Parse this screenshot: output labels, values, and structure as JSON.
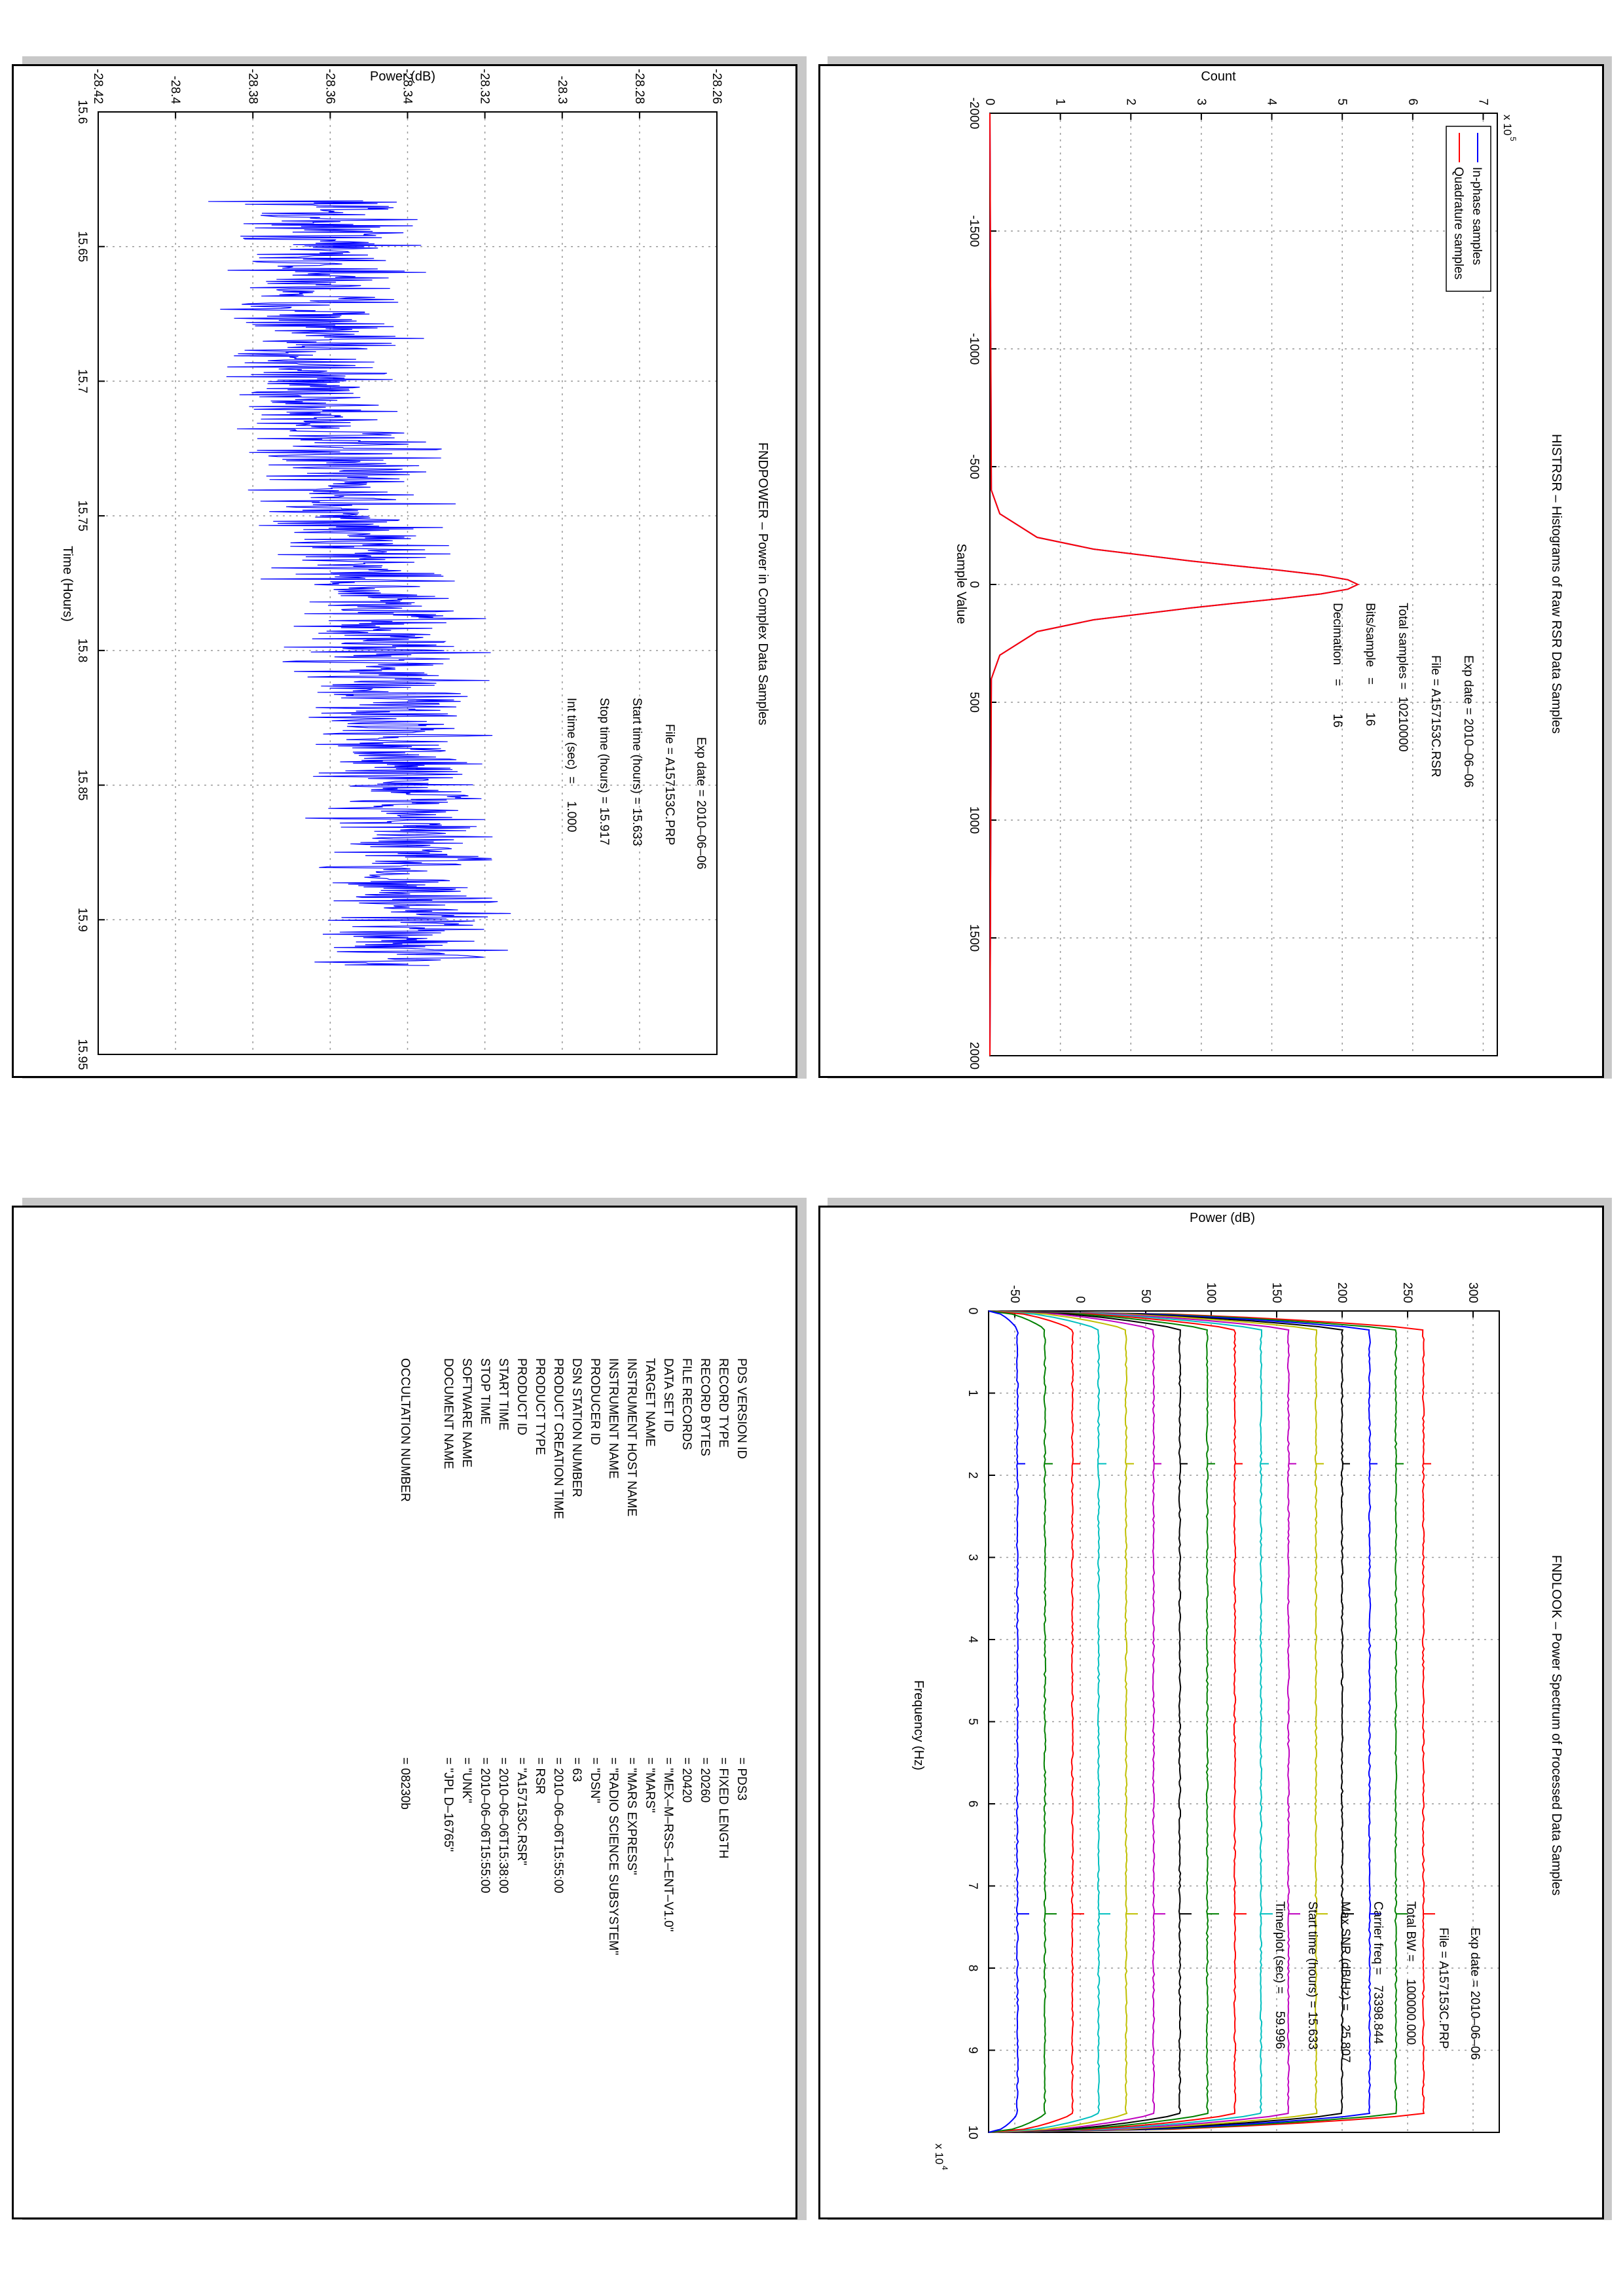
{
  "histogram": {
    "title": "HISTRSR – Histograms of Raw RSR Data Samples",
    "xlabel": "Sample Value",
    "ylabel": "Count",
    "exponent": "x 10",
    "exponent_power": "5",
    "x_ticks": [
      "-2000",
      "-1500",
      "-1000",
      "-500",
      "0",
      "500",
      "1000",
      "1500",
      "2000"
    ],
    "y_ticks": [
      "0",
      "1",
      "2",
      "3",
      "4",
      "5",
      "6",
      "7"
    ],
    "legend": [
      "In-phase samples",
      "Quadrature samples"
    ],
    "info": [
      "Exp date = 2010–06–06",
      "File = A157153C.RSR",
      "Total samples =  10210000",
      "Bits/sample   =        16",
      "Decimation    =        16"
    ]
  },
  "power": {
    "title": "FNDPOWER – Power in Complex Data Samples",
    "xlabel": "Time (Hours)",
    "ylabel": "Power (dB)",
    "x_ticks": [
      "15.6",
      "15.65",
      "15.7",
      "15.75",
      "15.8",
      "15.85",
      "15.9",
      "15.95"
    ],
    "y_ticks": [
      "-28.42",
      "-28.4",
      "-28.38",
      "-28.36",
      "-28.34",
      "-28.32",
      "-28.3",
      "-28.28",
      "-28.26"
    ],
    "info": [
      "Exp date = 2010–06–06",
      "File = A157153C.PRP",
      "Start time (hours) = 15.633",
      "Stop time (hours) = 15.917",
      "Int time (sec)  =     1.000"
    ]
  },
  "spectrum": {
    "title": "FNDLOOK – Power Spectrum of Processed Data Samples",
    "xlabel": "Frequency (Hz)",
    "ylabel": "Power (dB)",
    "exponent": "x 10",
    "exponent_power": "4",
    "x_ticks": [
      "0",
      "1",
      "2",
      "3",
      "4",
      "5",
      "6",
      "7",
      "8",
      "9",
      "10"
    ],
    "y_ticks": [
      "-50",
      "0",
      "50",
      "100",
      "150",
      "200",
      "250",
      "300"
    ],
    "info": [
      "Exp date = 2010–06–06",
      "File = A157153C.PRP",
      "Total BW =     100000.000",
      "Carrier freq =   73398.844",
      "Max SNR (dB/Hz) =    25.807",
      "Start time (hours) = 15.633",
      "Time/plot (sec) =     59.996"
    ]
  },
  "label_table": {
    "rows": [
      {
        "key": "PDS VERSION ID",
        "val": "= PDS3"
      },
      {
        "key": "RECORD TYPE",
        "val": "= FIXED LENGTH"
      },
      {
        "key": "RECORD BYTES",
        "val": "= 20260"
      },
      {
        "key": "FILE RECORDS",
        "val": "= 20420"
      },
      {
        "key": "DATA SET ID",
        "val": "= \"MEX–M–RSS–1–ENT–V1.0\""
      },
      {
        "key": "TARGET NAME",
        "val": "= \"MARS\""
      },
      {
        "key": "INSTRUMENT HOST NAME",
        "val": "= \"MARS EXPRESS\""
      },
      {
        "key": "INSTRUMENT NAME",
        "val": "= \"RADIO SCIENCE SUBSYSTEM\""
      },
      {
        "key": "PRODUCER ID",
        "val": "= \"DSN\""
      },
      {
        "key": "DSN STATION NUMBER",
        "val": "= 63"
      },
      {
        "key": "PRODUCT CREATION TIME",
        "val": "= 2010–06–06T15:55:00"
      },
      {
        "key": "PRODUCT TYPE",
        "val": "= RSR"
      },
      {
        "key": "PRODUCT ID",
        "val": "= \"A157153C.RSR\""
      },
      {
        "key": "START TIME",
        "val": "= 2010–06–06T15:38:00"
      },
      {
        "key": "STOP TIME",
        "val": "= 2010–06–06T15:55:00"
      },
      {
        "key": "SOFTWARE NAME",
        "val": "= \"UNK\""
      },
      {
        "key": "DOCUMENT NAME",
        "val": "= \"JPL D–16765\""
      },
      {
        "key": "OCCULTATION NUMBER",
        "val": "= 08230b"
      }
    ]
  },
  "chart_data": [
    {
      "type": "line",
      "title": "HISTRSR – Histograms of Raw RSR Data Samples",
      "xlabel": "Sample Value",
      "ylabel": "Count",
      "xlim": [
        -2000,
        2000
      ],
      "ylim": [
        0,
        7.2
      ],
      "y_scale": 100000,
      "grid": true,
      "legend_position": "top-left",
      "series": [
        {
          "name": "In-phase samples",
          "color": "#0000ff",
          "x": [
            -2000,
            -400,
            -300,
            -200,
            -150,
            -100,
            -80,
            -60,
            -40,
            -20,
            0,
            20,
            40,
            60,
            80,
            100,
            150,
            200,
            300,
            400,
            2000
          ],
          "values": [
            0,
            0.02,
            0.14,
            0.67,
            1.47,
            2.84,
            3.47,
            4.12,
            4.7,
            5.08,
            5.22,
            5.08,
            4.7,
            4.12,
            3.47,
            2.84,
            1.47,
            0.67,
            0.14,
            0.02,
            0
          ]
        },
        {
          "name": "Quadrature samples",
          "color": "#ff0000",
          "x": [
            -2000,
            -400,
            -300,
            -200,
            -150,
            -100,
            -80,
            -60,
            -40,
            -20,
            0,
            20,
            40,
            60,
            80,
            100,
            150,
            200,
            300,
            400,
            2000
          ],
          "values": [
            0,
            0.02,
            0.14,
            0.67,
            1.47,
            2.84,
            3.47,
            4.12,
            4.7,
            5.08,
            5.22,
            5.08,
            4.7,
            4.12,
            3.47,
            2.84,
            1.47,
            0.67,
            0.14,
            0.02,
            0
          ]
        }
      ]
    },
    {
      "type": "line",
      "title": "FNDPOWER – Power in Complex Data Samples",
      "xlabel": "Time (Hours)",
      "ylabel": "Power (dB)",
      "xlim": [
        15.6,
        15.95
      ],
      "ylim": [
        -28.42,
        -28.26
      ],
      "grid": true,
      "series": [
        {
          "name": "",
          "color": "#0000ff",
          "x": [
            15.633,
            15.65,
            15.675,
            15.7,
            15.725,
            15.75,
            15.775,
            15.8,
            15.825,
            15.85,
            15.875,
            15.9,
            15.917
          ],
          "values": [
            -28.36,
            -28.36,
            -28.365,
            -28.365,
            -28.36,
            -28.355,
            -28.35,
            -28.345,
            -28.345,
            -28.34,
            -28.34,
            -28.34,
            -28.34
          ],
          "noise_amplitude": 0.025
        }
      ]
    },
    {
      "type": "line",
      "title": "FNDLOOK – Power Spectrum of Processed Data Samples",
      "xlabel": "Frequency (Hz)",
      "ylabel": "Power (dB)",
      "xlim": [
        0,
        100000
      ],
      "ylim": [
        -70,
        320
      ],
      "x_scale": 10000,
      "grid": true,
      "peak_freq": 73398.844,
      "secondary_peak_freq": 18600,
      "series": [
        {
          "color": "#ff0000",
          "level": 262
        },
        {
          "color": "#008000",
          "level": 241
        },
        {
          "color": "#0000ff",
          "level": 221
        },
        {
          "color": "#000000",
          "level": 200
        },
        {
          "color": "#bfbf00",
          "level": 180
        },
        {
          "color": "#bf00bf",
          "level": 159
        },
        {
          "color": "#00bfbf",
          "level": 138
        },
        {
          "color": "#ff0000",
          "level": 118
        },
        {
          "color": "#008000",
          "level": 97
        },
        {
          "color": "#000000",
          "level": 76
        },
        {
          "color": "#bf00bf",
          "level": 56
        },
        {
          "color": "#bfbf00",
          "level": 35
        },
        {
          "color": "#00bfbf",
          "level": 14
        },
        {
          "color": "#ff0000",
          "level": -6
        },
        {
          "color": "#008000",
          "level": -27
        },
        {
          "color": "#0000ff",
          "level": -48
        }
      ]
    }
  ]
}
